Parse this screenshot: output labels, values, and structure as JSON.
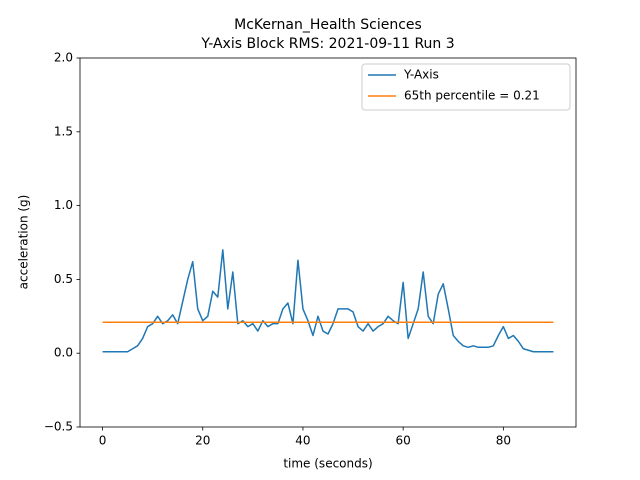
{
  "chart_data": {
    "type": "line",
    "title": "McKernan_Health Sciences",
    "subtitle": "Y-Axis Block RMS: 2021-09-11 Run 3",
    "xlabel": "time (seconds)",
    "ylabel": "acceleration (g)",
    "xlim": [
      -4.5,
      94.5
    ],
    "ylim": [
      -0.5,
      2.0
    ],
    "xticks": [
      0,
      20,
      40,
      60,
      80
    ],
    "yticks": [
      {
        "value": -0.5,
        "label": "−0.5"
      },
      {
        "value": 0,
        "label": "0.0"
      },
      {
        "value": 0.5,
        "label": "0.5"
      },
      {
        "value": 1,
        "label": "1.0"
      },
      {
        "value": 1.5,
        "label": "1.5"
      },
      {
        "value": 2,
        "label": "2.0"
      }
    ],
    "legend": "upper right",
    "series": [
      {
        "name": "Y-Axis",
        "color": "#1f77b4",
        "x": [
          0,
          1,
          2,
          3,
          4,
          5,
          6,
          7,
          8,
          9,
          10,
          11,
          12,
          13,
          14,
          15,
          16,
          17,
          18,
          19,
          20,
          21,
          22,
          23,
          24,
          25,
          26,
          27,
          28,
          29,
          30,
          31,
          32,
          33,
          34,
          35,
          36,
          37,
          38,
          39,
          40,
          41,
          42,
          43,
          44,
          45,
          46,
          47,
          48,
          49,
          50,
          51,
          52,
          53,
          54,
          55,
          56,
          57,
          58,
          59,
          60,
          61,
          62,
          63,
          64,
          65,
          66,
          67,
          68,
          69,
          70,
          71,
          72,
          73,
          74,
          75,
          76,
          77,
          78,
          79,
          80,
          81,
          82,
          83,
          84,
          85,
          86,
          87,
          88,
          89,
          90
        ],
        "values": [
          0.01,
          0.01,
          0.01,
          0.01,
          0.01,
          0.01,
          0.03,
          0.05,
          0.1,
          0.18,
          0.2,
          0.25,
          0.2,
          0.22,
          0.26,
          0.2,
          0.35,
          0.5,
          0.62,
          0.3,
          0.22,
          0.25,
          0.42,
          0.38,
          0.7,
          0.3,
          0.55,
          0.2,
          0.22,
          0.18,
          0.2,
          0.15,
          0.22,
          0.18,
          0.2,
          0.2,
          0.3,
          0.34,
          0.2,
          0.63,
          0.3,
          0.22,
          0.12,
          0.25,
          0.15,
          0.13,
          0.2,
          0.3,
          0.3,
          0.3,
          0.28,
          0.18,
          0.15,
          0.2,
          0.15,
          0.18,
          0.2,
          0.25,
          0.22,
          0.2,
          0.48,
          0.1,
          0.2,
          0.3,
          0.55,
          0.25,
          0.2,
          0.4,
          0.47,
          0.3,
          0.12,
          0.08,
          0.05,
          0.04,
          0.05,
          0.04,
          0.04,
          0.04,
          0.05,
          0.12,
          0.18,
          0.1,
          0.12,
          0.08,
          0.03,
          0.02,
          0.01,
          0.01,
          0.01,
          0.01,
          0.01
        ]
      },
      {
        "name": "65th percentile = 0.21",
        "color": "#ff7f0e",
        "x": [
          0,
          90
        ],
        "values": [
          0.21,
          0.21
        ]
      }
    ]
  }
}
